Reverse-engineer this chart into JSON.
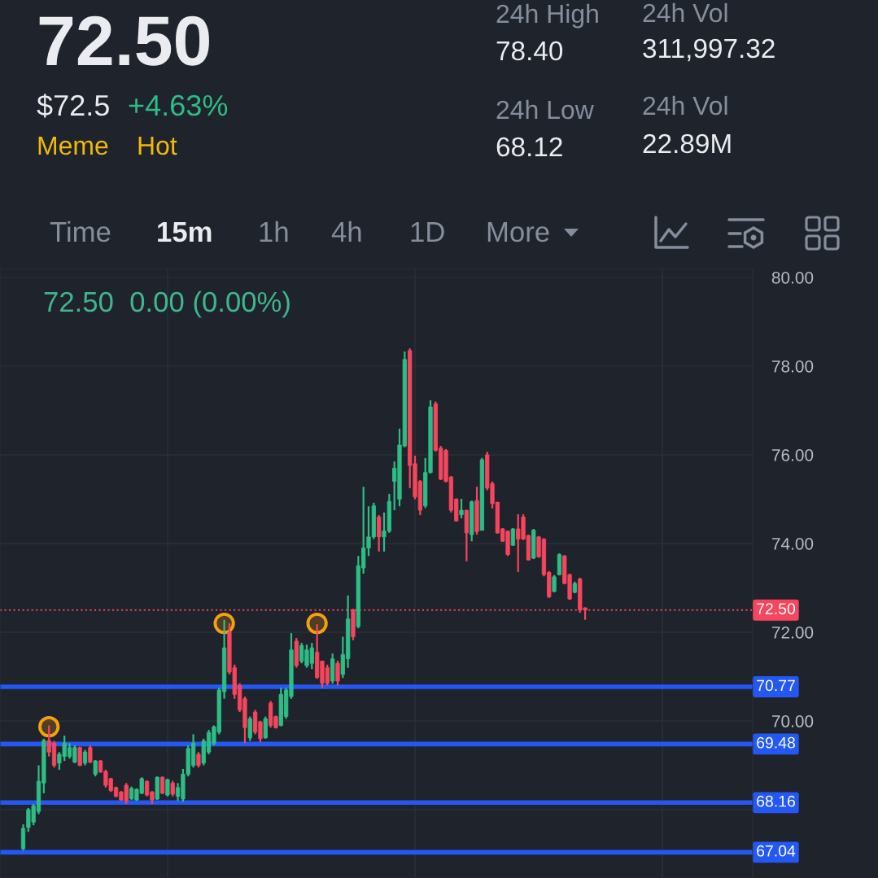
{
  "chart_data": {
    "type": "candlestick",
    "title": "72.50",
    "annotations": [
      "$72.5",
      "+4.63%",
      "Meme",
      "Hot",
      "24h High",
      "78.40",
      "24h Vol",
      "311,997.32",
      "24h Low",
      "68.12",
      "24h Vol",
      "22.89M",
      "Time",
      "15m",
      "1h",
      "4h",
      "1D",
      "More",
      "72.50  0.00 (0.00%)"
    ],
    "categories": [
      null,
      null,
      null,
      null,
      null,
      null,
      null,
      null,
      null,
      null,
      null,
      null,
      null,
      null,
      null,
      null,
      null,
      null,
      null,
      null,
      null,
      null,
      null,
      null,
      null,
      null,
      null,
      null,
      null,
      null,
      null,
      null,
      null,
      null,
      null,
      null,
      null,
      null,
      null,
      null,
      null,
      null,
      null,
      null,
      null,
      null,
      null,
      null,
      null,
      null,
      null,
      null,
      null,
      null,
      null,
      null,
      null,
      null,
      null,
      null,
      null,
      null,
      null,
      null,
      null,
      null,
      null,
      null,
      null,
      null,
      null,
      null,
      null,
      null,
      null,
      null,
      null,
      null,
      null,
      null,
      null,
      null,
      null,
      null,
      null,
      null,
      null,
      null,
      null,
      null,
      null,
      null,
      null,
      null,
      null,
      null,
      null,
      null,
      null,
      null,
      null,
      null,
      null,
      null,
      null,
      null,
      null,
      null,
      null,
      null,
      null,
      null,
      null,
      null,
      null,
      null,
      null,
      null,
      null,
      null,
      null,
      null,
      null,
      null,
      null,
      null,
      null,
      null,
      null,
      null,
      null,
      null,
      null,
      null,
      null,
      null,
      null,
      null,
      null,
      null,
      null,
      null,
      null,
      null,
      null,
      null
    ],
    "ohlc": [
      null,
      null,
      null,
      null,
      [
        67.12,
        67.67,
        67.08,
        67.58
      ],
      [
        67.6,
        68.04,
        67.5,
        68.0
      ],
      [
        67.72,
        68.13,
        67.65,
        68.09
      ],
      [
        67.96,
        69.0,
        67.9,
        68.64
      ],
      [
        68.6,
        69.6,
        68.37,
        69.56
      ],
      [
        69.56,
        69.9,
        69.2,
        69.3
      ],
      [
        69.5,
        69.55,
        68.95,
        69.0
      ],
      [
        69.05,
        69.3,
        68.9,
        69.25
      ],
      [
        69.2,
        69.67,
        69.1,
        69.5
      ],
      [
        69.2,
        69.5,
        69.15,
        69.4
      ],
      [
        69.07,
        69.45,
        69.05,
        69.4
      ],
      [
        69.4,
        69.42,
        68.98,
        69.0
      ],
      [
        69.05,
        69.35,
        69.0,
        69.3
      ],
      [
        69.4,
        69.45,
        69.05,
        69.07
      ],
      [
        68.8,
        69.12,
        68.75,
        69.1
      ],
      [
        69.1,
        69.12,
        68.83,
        68.85
      ],
      [
        68.86,
        68.9,
        68.5,
        68.55
      ],
      [
        68.7,
        68.72,
        68.4,
        68.43
      ],
      [
        68.5,
        68.52,
        68.28,
        68.3
      ],
      [
        68.4,
        68.42,
        68.2,
        68.22
      ],
      [
        68.55,
        68.6,
        68.13,
        68.2
      ],
      [
        68.25,
        68.52,
        68.22,
        68.48
      ],
      [
        68.22,
        68.48,
        68.2,
        68.46
      ],
      [
        68.37,
        68.73,
        68.35,
        68.7
      ],
      [
        68.64,
        68.66,
        68.3,
        68.33
      ],
      [
        68.4,
        68.42,
        68.13,
        68.22
      ],
      [
        68.24,
        68.75,
        68.22,
        68.73
      ],
      [
        68.73,
        68.75,
        68.35,
        68.37
      ],
      [
        68.33,
        68.7,
        68.3,
        68.68
      ],
      [
        68.6,
        68.65,
        68.3,
        68.35
      ],
      [
        68.3,
        68.6,
        68.2,
        68.5
      ],
      [
        68.24,
        68.92,
        68.18,
        68.8
      ],
      [
        68.8,
        69.45,
        68.75,
        69.38
      ],
      [
        69.0,
        69.7,
        68.95,
        69.5
      ],
      [
        69.25,
        69.3,
        68.95,
        69.0
      ],
      [
        69.05,
        69.6,
        69.0,
        69.55
      ],
      [
        69.3,
        69.8,
        69.25,
        69.74
      ],
      [
        69.5,
        69.9,
        69.45,
        69.87
      ],
      [
        69.75,
        70.75,
        69.7,
        70.7
      ],
      [
        70.66,
        72.28,
        70.5,
        71.65
      ],
      [
        72.0,
        72.2,
        71.05,
        71.1
      ],
      [
        71.2,
        71.27,
        70.5,
        70.6
      ],
      [
        70.8,
        70.85,
        70.2,
        70.25
      ],
      [
        70.5,
        70.55,
        69.5,
        69.85
      ],
      [
        69.62,
        70.1,
        69.55,
        70.05
      ],
      [
        70.2,
        70.25,
        69.7,
        69.75
      ],
      [
        69.98,
        70.0,
        69.52,
        69.6
      ],
      [
        69.62,
        70.1,
        69.6,
        70.05
      ],
      [
        70.4,
        70.45,
        69.85,
        69.9
      ],
      [
        70.1,
        70.12,
        69.83,
        69.85
      ],
      [
        69.9,
        70.75,
        69.88,
        70.6
      ],
      [
        70.1,
        70.75,
        70.05,
        70.7
      ],
      [
        70.55,
        71.98,
        70.5,
        71.6
      ],
      [
        71.8,
        71.87,
        71.2,
        71.25
      ],
      [
        71.35,
        71.76,
        71.3,
        71.7
      ],
      [
        71.25,
        71.72,
        71.2,
        71.6
      ],
      [
        71.3,
        71.76,
        71.17,
        71.65
      ],
      [
        71.55,
        72.18,
        70.95,
        70.98
      ],
      [
        71.35,
        71.36,
        70.75,
        70.85
      ],
      [
        71.2,
        71.27,
        70.8,
        70.85
      ],
      [
        70.9,
        71.52,
        70.84,
        71.4
      ],
      [
        71.3,
        71.36,
        70.8,
        70.9
      ],
      [
        71.05,
        71.9,
        70.97,
        71.5
      ],
      [
        71.4,
        72.83,
        71.2,
        72.3
      ],
      [
        72.5,
        72.53,
        71.82,
        71.9
      ],
      [
        72.13,
        73.72,
        72.09,
        73.5
      ],
      [
        73.45,
        75.28,
        73.32,
        73.9
      ],
      [
        73.9,
        74.84,
        73.72,
        74.15
      ],
      [
        74.15,
        74.92,
        74.1,
        74.85
      ],
      [
        74.6,
        74.64,
        73.82,
        74.15
      ],
      [
        74.15,
        74.7,
        73.82,
        74.28
      ],
      [
        74.28,
        75.12,
        74.24,
        74.95
      ],
      [
        75.4,
        75.85,
        74.75,
        75.7
      ],
      [
        75.0,
        76.59,
        74.84,
        76.22
      ],
      [
        76.2,
        78.33,
        76.17,
        78.15
      ],
      [
        78.35,
        78.4,
        75.25,
        75.76
      ],
      [
        75.8,
        75.98,
        75.0,
        75.05
      ],
      [
        75.4,
        75.43,
        74.64,
        74.75
      ],
      [
        74.85,
        75.93,
        74.8,
        75.6
      ],
      [
        75.6,
        77.23,
        75.58,
        77.08
      ],
      [
        77.15,
        77.2,
        76.07,
        76.1
      ],
      [
        76.15,
        76.2,
        75.43,
        75.45
      ],
      [
        76.1,
        76.13,
        75.38,
        75.4
      ],
      [
        75.5,
        75.52,
        74.7,
        74.75
      ],
      [
        75.0,
        75.02,
        74.5,
        74.51
      ],
      [
        74.65,
        75.01,
        74.57,
        74.75
      ],
      [
        74.75,
        74.76,
        73.6,
        74.24
      ],
      [
        74.2,
        74.97,
        74.05,
        74.94
      ],
      [
        74.97,
        75.28,
        74.2,
        74.27
      ],
      [
        74.3,
        75.93,
        74.29,
        75.89
      ],
      [
        76.0,
        76.07,
        75.2,
        75.25
      ],
      [
        75.35,
        75.4,
        74.79,
        74.9
      ],
      [
        74.93,
        74.94,
        74.22,
        74.24
      ],
      [
        74.33,
        74.35,
        74.04,
        74.05
      ],
      [
        74.28,
        74.29,
        73.72,
        73.75
      ],
      [
        73.96,
        74.35,
        73.95,
        74.33
      ],
      [
        74.33,
        74.66,
        73.36,
        74.1
      ],
      [
        74.6,
        74.66,
        74.08,
        74.1
      ],
      [
        74.18,
        74.2,
        73.62,
        73.63
      ],
      [
        73.67,
        74.33,
        73.65,
        74.3
      ],
      [
        74.15,
        74.17,
        73.68,
        73.7
      ],
      [
        74.1,
        74.12,
        73.26,
        73.3
      ],
      [
        73.35,
        73.38,
        72.77,
        72.8
      ],
      [
        72.92,
        73.29,
        72.9,
        73.25
      ],
      [
        73.3,
        73.78,
        73.28,
        73.75
      ],
      [
        73.72,
        73.74,
        73.08,
        73.1
      ],
      [
        73.3,
        73.32,
        72.73,
        72.75
      ],
      [
        72.9,
        73.14,
        72.88,
        73.1
      ],
      [
        73.2,
        73.23,
        72.44,
        72.5
      ],
      [
        72.55,
        72.56,
        72.28,
        72.5
      ],
      null,
      null,
      null,
      null,
      null,
      null,
      null,
      null,
      null,
      null,
      null,
      null,
      null,
      null,
      null,
      null,
      null,
      null,
      null,
      null,
      null,
      null,
      null,
      null,
      null,
      null,
      null,
      null,
      null,
      null,
      null,
      null
    ],
    "colors": [
      null,
      null,
      null,
      null,
      "#2ebd85",
      "#2ebd85",
      "#2ebd85",
      "#2ebd85",
      "#2ebd85",
      "#f6465d",
      "#f6465d",
      "#2ebd85",
      "#2ebd85",
      "#2ebd85",
      "#2ebd85",
      "#f6465d",
      "#2ebd85",
      "#f6465d",
      "#2ebd85",
      "#f6465d",
      "#f6465d",
      "#f6465d",
      "#f6465d",
      "#f6465d",
      "#f6465d",
      "#2ebd85",
      "#2ebd85",
      "#2ebd85",
      "#f6465d",
      "#f6465d",
      "#2ebd85",
      "#f6465d",
      "#2ebd85",
      "#f6465d",
      "#2ebd85",
      "#2ebd85",
      "#2ebd85",
      "#2ebd85",
      "#f6465d",
      "#2ebd85",
      "#2ebd85",
      "#2ebd85",
      "#2ebd85",
      "#2ebd85",
      "#f6465d",
      "#f6465d",
      "#f6465d",
      "#f6465d",
      "#2ebd85",
      "#f6465d",
      "#f6465d",
      "#2ebd85",
      "#f6465d",
      "#f6465d",
      "#2ebd85",
      "#2ebd85",
      "#2ebd85",
      "#f6465d",
      "#2ebd85",
      "#2ebd85",
      "#2ebd85",
      "#f6465d",
      "#f6465d",
      "#f6465d",
      "#2ebd85",
      "#f6465d",
      "#2ebd85",
      "#2ebd85",
      "#f6465d",
      "#2ebd85",
      "#2ebd85",
      "#2ebd85",
      "#2ebd85",
      "#f6465d",
      "#2ebd85",
      "#2ebd85",
      "#2ebd85",
      "#2ebd85",
      "#2ebd85",
      "#f6465d",
      "#f6465d",
      "#f6465d",
      "#2ebd85",
      "#2ebd85",
      "#f6465d",
      "#f6465d",
      "#f6465d",
      "#f6465d",
      "#f6465d",
      "#2ebd85",
      "#f6465d",
      "#2ebd85",
      "#f6465d",
      "#2ebd85",
      "#f6465d",
      "#f6465d",
      "#f6465d",
      "#f6465d",
      "#f6465d",
      "#2ebd85",
      "#f6465d",
      "#f6465d",
      "#f6465d",
      "#2ebd85",
      "#f6465d",
      "#f6465d",
      "#f6465d",
      "#2ebd85",
      "#2ebd85",
      "#f6465d",
      "#f6465d",
      "#2ebd85",
      "#f6465d",
      "#f6465d",
      null,
      null,
      null,
      null,
      null,
      null,
      null,
      null,
      null,
      null,
      null,
      null,
      null,
      null,
      null,
      null,
      null,
      null,
      null,
      null,
      null,
      null,
      null,
      null,
      null,
      null,
      null,
      null,
      null,
      null,
      null,
      null
    ],
    "series": [
      {
        "type": "scatter",
        "color": "#f5a10f",
        "marker": "circle",
        "values": [
          null,
          null,
          null,
          null,
          null,
          null,
          null,
          null,
          null,
          69.87,
          null,
          null,
          null,
          null,
          null,
          null,
          null,
          null,
          null,
          null,
          null,
          null,
          null,
          null,
          null,
          null,
          null,
          null,
          null,
          null,
          null,
          null,
          null,
          null,
          null,
          null,
          null,
          null,
          null,
          null,
          null,
          null,
          null,
          72.2,
          null,
          null,
          null,
          null,
          null,
          null,
          null,
          null,
          null,
          null,
          null,
          null,
          null,
          null,
          null,
          null,
          null,
          72.2,
          null,
          null,
          null,
          null,
          null,
          null,
          null,
          null,
          null,
          null,
          null,
          null,
          null,
          null,
          null,
          null,
          null,
          null,
          null,
          null,
          null,
          null,
          null,
          null,
          null,
          null,
          null,
          null,
          null,
          null,
          null,
          null,
          null,
          null,
          null,
          null,
          null,
          null,
          null,
          null,
          null,
          null,
          null,
          null,
          null,
          null,
          null,
          null,
          null,
          null,
          null,
          null,
          null,
          null,
          null,
          null,
          null,
          null,
          null,
          null,
          null,
          null,
          null,
          null,
          null,
          null,
          null,
          null,
          null,
          null,
          null,
          null,
          null,
          null,
          null,
          null,
          null,
          null,
          null,
          null,
          null,
          null,
          null,
          null
        ]
      }
    ],
    "ylim": [
      66.46,
      80.2
    ],
    "yticks": [
      {
        "value": 80,
        "label": "80.00"
      },
      {
        "value": 78,
        "label": "78.00"
      },
      {
        "value": 76,
        "label": "76.00"
      },
      {
        "value": 74,
        "label": "74.00"
      },
      {
        "value": 72,
        "label": "72.00"
      },
      {
        "value": 70,
        "label": "70.00"
      },
      {
        "value": 68,
        "label": null
      }
    ],
    "ref_lines": [
      {
        "axis": "y",
        "value": 72.5,
        "label": "72.50",
        "color": "#f6465d",
        "line_style": "dotted"
      },
      {
        "axis": "y",
        "value": 70.77,
        "label": "70.77",
        "color": "#2458f5",
        "line_style": "solid"
      },
      {
        "axis": "y",
        "value": 69.48,
        "label": "69.48",
        "color": "#2458f5",
        "line_style": "solid"
      },
      {
        "axis": "y",
        "value": 68.16,
        "label": "68.16",
        "color": "#2458f5",
        "line_style": "solid"
      },
      {
        "axis": "y",
        "value": 67.04,
        "label": "67.04",
        "color": "#2458f5",
        "line_style": "solid"
      }
    ],
    "grid": true,
    "tick_labels": "y"
  }
}
